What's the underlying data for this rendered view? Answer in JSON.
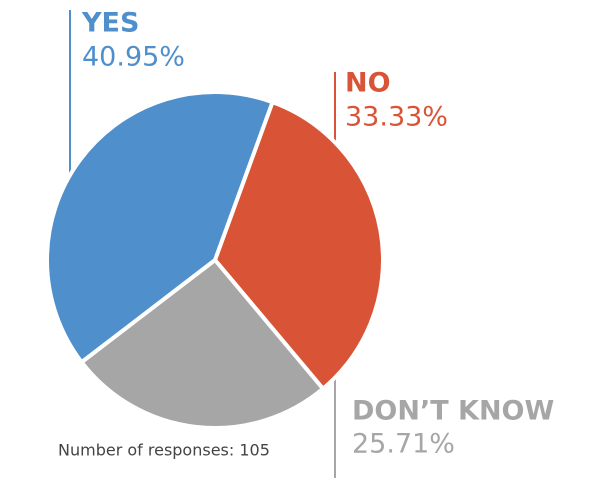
{
  "chart_data": {
    "type": "pie",
    "categories": [
      "YES",
      "NO",
      "DON’T KNOW"
    ],
    "values": [
      40.95,
      33.33,
      25.71
    ],
    "value_labels": [
      "40.95%",
      "33.33%",
      "25.71%"
    ],
    "colors": [
      "#4f8fcc",
      "#d95436",
      "#a6a6a6"
    ],
    "note": "Number of responses: 105"
  }
}
